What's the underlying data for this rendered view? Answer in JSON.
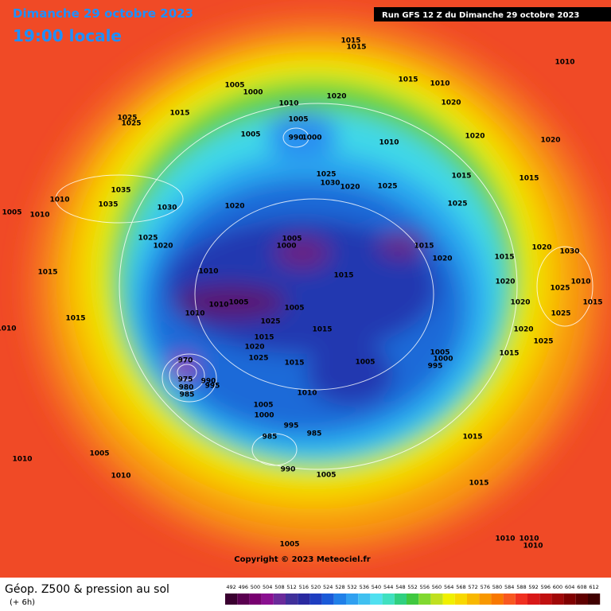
{
  "header": {
    "date": "Dimanche 29 octobre 2023",
    "time": "19:00 locale",
    "run": "Run GFS 12 Z du Dimanche 29 octobre 2023"
  },
  "map": {
    "copyright": "Copyright © 2023 Meteociel.fr",
    "pressure_labels": [
      1015,
      1015,
      1010,
      1015,
      1010,
      1005,
      1000,
      1010,
      1020,
      1020,
      1015,
      1025,
      1025,
      1005,
      990,
      1000,
      1005,
      1010,
      1020,
      1020,
      1015,
      1015,
      1025,
      1030,
      1020,
      1025,
      1035,
      1010,
      1035,
      1030,
      1020,
      1025,
      1005,
      1010,
      1025,
      1020,
      1005,
      1000,
      1015,
      1020,
      1015,
      1020,
      1030,
      1015,
      1010,
      1015,
      1020,
      1025,
      1010,
      1015,
      1020,
      1010,
      1005,
      1010,
      1005,
      1015,
      1025,
      1025,
      1015,
      1015,
      1020,
      1010,
      1020,
      1025,
      1025,
      1015,
      1005,
      1005,
      1000,
      995,
      1015,
      970,
      975,
      980,
      985,
      990,
      995,
      1010,
      1005,
      1000,
      995,
      985,
      985,
      1015,
      990,
      1010,
      1005,
      1010,
      1005,
      1015,
      1010,
      1010,
      1010,
      1005
    ]
  },
  "footer": {
    "title": "Géop. Z500 & pression au sol",
    "subtitle": "(+ 6h)",
    "scale": [
      492,
      496,
      500,
      504,
      508,
      512,
      516,
      520,
      524,
      528,
      532,
      536,
      540,
      544,
      548,
      552,
      556,
      560,
      564,
      568,
      572,
      576,
      580,
      584,
      588,
      592,
      596,
      600,
      604,
      608,
      612
    ]
  }
}
